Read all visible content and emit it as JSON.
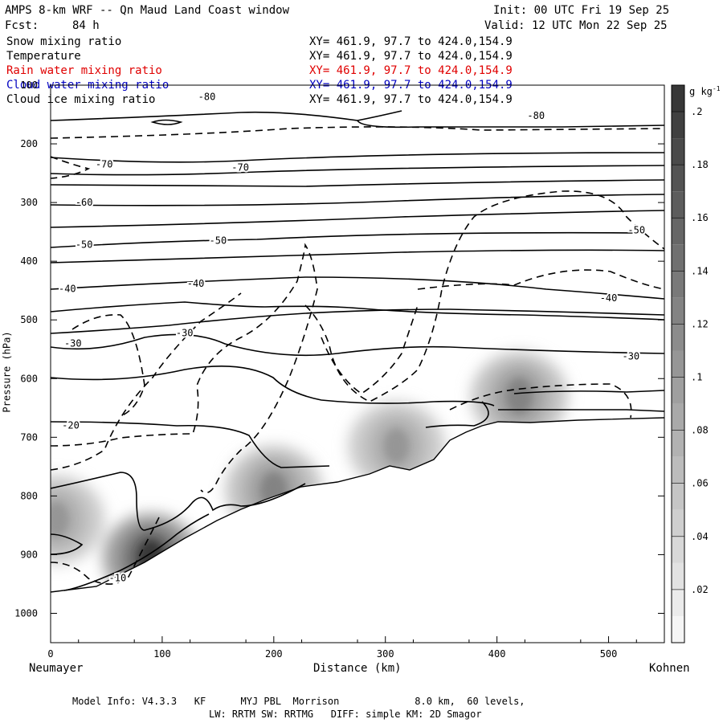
{
  "header": {
    "title": "AMPS 8-km WRF -- Qn Maud Land Coast window",
    "init": "Init: 00 UTC Fri 19 Sep 25",
    "fcst_label": "Fcst:",
    "fcst_value": "84 h",
    "valid": "Valid: 12 UTC Mon 22 Sep 25"
  },
  "fields": [
    {
      "name": "Snow mixing ratio",
      "xy": "XY= 461.9, 97.7 to 424.0,154.9",
      "color": "#000000"
    },
    {
      "name": "Temperature",
      "xy": "XY= 461.9, 97.7 to 424.0,154.9",
      "color": "#000000"
    },
    {
      "name": "Rain water mixing ratio",
      "xy": "XY= 461.9, 97.7 to 424.0,154.9",
      "color": "#e00000"
    },
    {
      "name": "Cloud water mixing ratio",
      "xy": "XY= 461.9, 97.7 to 424.0,154.9",
      "color": "#0000c0"
    },
    {
      "name": "Cloud ice mixing ratio",
      "xy": "XY= 461.9, 97.7 to 424.0,154.9",
      "color": "#000000"
    }
  ],
  "chart_data": {
    "type": "heatmap",
    "title": "AMPS 8-km WRF -- Qn Maud Land Coast window",
    "xlabel": "Distance (km)",
    "ylabel": "Pressure (hPa)",
    "xlim": [
      0,
      550
    ],
    "ylim": [
      1050,
      100
    ],
    "x_ticks": [
      0,
      100,
      200,
      300,
      400,
      500
    ],
    "y_ticks": [
      100,
      200,
      300,
      400,
      500,
      600,
      700,
      800,
      900,
      1000
    ],
    "left_endpoint": "Neumayer",
    "right_endpoint": "Kohnen",
    "colorbar": {
      "unit": "g kg",
      "unit_superscript": "-1",
      "ticks": [
        ".02",
        ".04",
        ".06",
        ".08",
        ".1",
        ".12",
        ".14",
        ".16",
        ".18",
        ".2"
      ],
      "levels": [
        0.01,
        0.02,
        0.03,
        0.04,
        0.05,
        0.06,
        0.07,
        0.08,
        0.09,
        0.1,
        0.11,
        0.12,
        0.13,
        0.14,
        0.15,
        0.16,
        0.17,
        0.18,
        0.19,
        0.2,
        0.21
      ]
    },
    "temperature_contour_labels": [
      {
        "value": "-80",
        "x": 140,
        "p": 120
      },
      {
        "value": "-80",
        "x": 435,
        "p": 152
      },
      {
        "value": "-70",
        "x": 48,
        "p": 235
      },
      {
        "value": "-70",
        "x": 170,
        "p": 240
      },
      {
        "value": "-60",
        "x": 30,
        "p": 300
      },
      {
        "value": "-50",
        "x": 30,
        "p": 372
      },
      {
        "value": "-50",
        "x": 150,
        "p": 365
      },
      {
        "value": "-50",
        "x": 525,
        "p": 347
      },
      {
        "value": "-40",
        "x": 15,
        "p": 447
      },
      {
        "value": "-40",
        "x": 130,
        "p": 438
      },
      {
        "value": "-40",
        "x": 500,
        "p": 463
      },
      {
        "value": "-30",
        "x": 20,
        "p": 540
      },
      {
        "value": "-30",
        "x": 120,
        "p": 522
      },
      {
        "value": "-30",
        "x": 520,
        "p": 562
      },
      {
        "value": "-20",
        "x": 18,
        "p": 680
      },
      {
        "value": "-10",
        "x": 60,
        "p": 940
      }
    ],
    "snow_maxima": [
      {
        "x": 90,
        "p": 905,
        "value": 0.2
      },
      {
        "x": 200,
        "p": 790,
        "value": 0.12
      },
      {
        "x": 310,
        "p": 715,
        "value": 0.1
      },
      {
        "x": 420,
        "p": 630,
        "value": 0.12
      },
      {
        "x": 5,
        "p": 840,
        "value": 0.1
      }
    ]
  },
  "footer": {
    "line1": "Model Info: V4.3.3   KF      MYJ PBL  Morrison             8.0 km,  60 levels,",
    "line2": "LW: RRTM SW: RRTMG   DIFF: simple KM: 2D Smagor"
  }
}
